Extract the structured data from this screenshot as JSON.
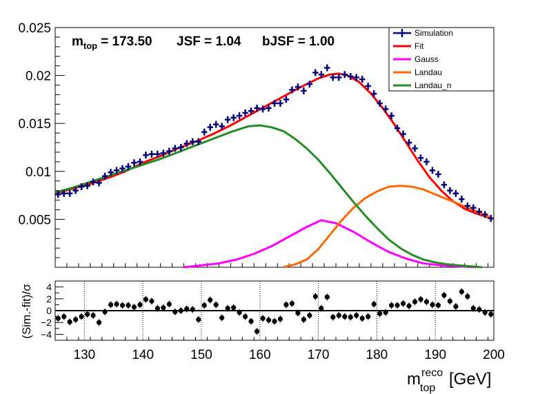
{
  "chart_data": [
    {
      "type": "scatter",
      "annotation": {
        "mtop_label": "m",
        "mtop_sub": "top",
        "mtop_value": "= 173.50",
        "jsf": "JSF = 1.04",
        "bjsf": "bJSF = 1.00"
      },
      "xlim": [
        125,
        200
      ],
      "ylim": [
        0,
        0.025
      ],
      "yticks": [
        0.005,
        0.01,
        0.015,
        0.02,
        0.025
      ],
      "ytick_labels": [
        "0.005",
        "0.01",
        "0.015",
        "0.02",
        "0.025"
      ],
      "legend": {
        "placement": "top-right",
        "entries": [
          {
            "name": "Simulation",
            "color": "#000080",
            "style": "marker"
          },
          {
            "name": "Fit",
            "color": "#ff0000",
            "style": "line"
          },
          {
            "name": "Gauss",
            "color": "#ff00ff",
            "style": "line"
          },
          {
            "name": "Landau",
            "color": "#ff6600",
            "style": "line"
          },
          {
            "name": "Landau_n",
            "color": "#228b22",
            "style": "line"
          }
        ]
      },
      "simulation": {
        "color": "#000080",
        "x": [
          125.5,
          126.5,
          127.5,
          128.5,
          129.5,
          130.5,
          131.5,
          132.5,
          133.5,
          134.5,
          135.5,
          136.5,
          137.5,
          138.5,
          139.5,
          140.5,
          141.5,
          142.5,
          143.5,
          144.5,
          145.5,
          146.5,
          147.5,
          148.5,
          149.5,
          150.5,
          151.5,
          152.5,
          153.5,
          154.5,
          155.5,
          156.5,
          157.5,
          158.5,
          159.5,
          160.5,
          161.5,
          162.5,
          163.5,
          164.5,
          165.5,
          166.5,
          167.5,
          168.5,
          169.5,
          170.5,
          171.5,
          172.5,
          173.5,
          174.5,
          175.5,
          176.5,
          177.5,
          178.5,
          179.5,
          180.5,
          181.5,
          182.5,
          183.5,
          184.5,
          185.5,
          186.5,
          187.5,
          188.5,
          189.5,
          190.5,
          191.5,
          192.5,
          193.5,
          194.5,
          195.5,
          196.5,
          197.5,
          198.5,
          199.5
        ],
        "y": [
          0.0076,
          0.0077,
          0.0077,
          0.008,
          0.0084,
          0.0085,
          0.0089,
          0.0088,
          0.0095,
          0.0099,
          0.0101,
          0.0103,
          0.0105,
          0.0109,
          0.011,
          0.0117,
          0.0118,
          0.0118,
          0.0119,
          0.0121,
          0.0124,
          0.0125,
          0.0129,
          0.0131,
          0.0131,
          0.0141,
          0.0146,
          0.0149,
          0.0147,
          0.0154,
          0.0156,
          0.0158,
          0.0161,
          0.0163,
          0.0166,
          0.0165,
          0.0166,
          0.0171,
          0.0171,
          0.0175,
          0.0185,
          0.0188,
          0.0184,
          0.0191,
          0.0203,
          0.0201,
          0.0208,
          0.0198,
          0.0198,
          0.0201,
          0.0199,
          0.0198,
          0.0196,
          0.0189,
          0.0181,
          0.0171,
          0.0165,
          0.0158,
          0.0145,
          0.0139,
          0.013,
          0.0124,
          0.0114,
          0.011,
          0.0101,
          0.0097,
          0.0086,
          0.008,
          0.0077,
          0.0071,
          0.0064,
          0.0062,
          0.0058,
          0.0055,
          0.0051
        ]
      },
      "fits": [
        {
          "name": "Fit",
          "color": "#ff0000",
          "x": [
            125,
            128,
            131,
            134,
            137,
            140,
            143,
            146,
            149,
            152,
            155,
            158,
            161,
            164,
            167,
            170,
            172,
            173.5,
            175,
            177,
            179,
            181,
            183,
            185,
            187,
            189,
            191,
            193,
            195,
            197,
            199,
            200
          ],
          "y": [
            0.0077,
            0.0082,
            0.0087,
            0.0093,
            0.01,
            0.0109,
            0.0116,
            0.0124,
            0.0131,
            0.0139,
            0.0148,
            0.0158,
            0.0168,
            0.0178,
            0.0188,
            0.0197,
            0.0201,
            0.0202,
            0.02,
            0.0193,
            0.0181,
            0.0166,
            0.0149,
            0.013,
            0.0111,
            0.0094,
            0.008,
            0.0069,
            0.0061,
            0.0056,
            0.0052,
            0.005
          ]
        },
        {
          "name": "Gauss",
          "color": "#ff00ff",
          "x": [
            147,
            150,
            153,
            156,
            159,
            162,
            165,
            168,
            170.5,
            173,
            176,
            179,
            182,
            185,
            188,
            191,
            194,
            197
          ],
          "y": [
            0.0,
            0.0002,
            0.0004,
            0.0008,
            0.0014,
            0.0022,
            0.0032,
            0.0042,
            0.0049,
            0.0046,
            0.0037,
            0.0026,
            0.0016,
            0.0009,
            0.0004,
            0.0002,
            0.0001,
            0.0
          ],
          "legend_only_label": "Gauss"
        },
        {
          "name": "Landau",
          "color": "#ff6600",
          "x": [
            164,
            166,
            168,
            170,
            172,
            174,
            176,
            178,
            180,
            182,
            184,
            186,
            188,
            190,
            192,
            194,
            196,
            198,
            200
          ],
          "y": [
            0.0,
            0.0003,
            0.0008,
            0.0019,
            0.0034,
            0.0049,
            0.0062,
            0.0072,
            0.0079,
            0.0084,
            0.0085,
            0.0084,
            0.0081,
            0.0076,
            0.0071,
            0.0066,
            0.0061,
            0.0056,
            0.005
          ]
        },
        {
          "name": "Landau_n",
          "color": "#228b22",
          "x": [
            125,
            128,
            131,
            134,
            137,
            140,
            143,
            146,
            149,
            152,
            155,
            158,
            160,
            162,
            164,
            166,
            168,
            170,
            172,
            174,
            176,
            178,
            180,
            182,
            184,
            186,
            188,
            190,
            192,
            194,
            196,
            198
          ],
          "y": [
            0.0078,
            0.0083,
            0.0089,
            0.0095,
            0.0101,
            0.0107,
            0.0113,
            0.012,
            0.0127,
            0.0134,
            0.0141,
            0.0147,
            0.0148,
            0.0146,
            0.0142,
            0.0134,
            0.0124,
            0.0112,
            0.0098,
            0.0083,
            0.0068,
            0.0054,
            0.0041,
            0.0029,
            0.002,
            0.0013,
            0.0008,
            0.0005,
            0.0003,
            0.0002,
            0.0001,
            0.0
          ]
        }
      ]
    },
    {
      "type": "scatter",
      "ylabel": "(Sim.-fit)/σ",
      "xlabel_main": "m",
      "xlabel_sup": "reco",
      "xlabel_sub": "top",
      "xlabel_unit": "[GeV]",
      "xlim": [
        125,
        200
      ],
      "ylim": [
        -5,
        5
      ],
      "xticks": [
        130,
        140,
        150,
        160,
        170,
        180,
        190,
        200
      ],
      "xtick_labels": [
        "130",
        "140",
        "150",
        "160",
        "170",
        "180",
        "190",
        "200"
      ],
      "yticks": [
        -4,
        -2,
        0,
        2,
        4
      ],
      "ytick_labels": [
        "−4",
        "−2",
        "0",
        "2",
        "4"
      ],
      "grid_x": true,
      "residuals": {
        "x": [
          125.5,
          126.5,
          127.5,
          128.5,
          129.5,
          130.5,
          131.5,
          132.5,
          133.5,
          134.5,
          135.5,
          136.5,
          137.5,
          138.5,
          139.5,
          140.5,
          141.5,
          142.5,
          143.5,
          144.5,
          145.5,
          146.5,
          147.5,
          148.5,
          149.5,
          150.5,
          151.5,
          152.5,
          153.5,
          154.5,
          155.5,
          156.5,
          157.5,
          158.5,
          159.5,
          160.5,
          161.5,
          162.5,
          163.5,
          164.5,
          165.5,
          166.5,
          167.5,
          168.5,
          169.5,
          170.5,
          171.5,
          172.5,
          173.5,
          174.5,
          175.5,
          176.5,
          177.5,
          178.5,
          179.5,
          180.5,
          181.5,
          182.5,
          183.5,
          184.5,
          185.5,
          186.5,
          187.5,
          188.5,
          189.5,
          190.5,
          191.5,
          192.5,
          193.5,
          194.5,
          195.5,
          196.5,
          197.5,
          198.5,
          199.5
        ],
        "y": [
          -1.3,
          -1.0,
          -1.9,
          -1.5,
          -1.0,
          -0.6,
          -0.8,
          -2.0,
          -0.2,
          1.0,
          1.1,
          0.9,
          0.9,
          0.6,
          1.0,
          1.9,
          1.6,
          0.4,
          0.5,
          1.1,
          -0.2,
          0.0,
          0.3,
          0.2,
          -1.5,
          0.9,
          1.8,
          1.0,
          -1.2,
          0.4,
          0.5,
          -0.3,
          -1.0,
          -1.8,
          -3.5,
          -1.3,
          -1.6,
          -1.8,
          -1.4,
          1.0,
          1.2,
          -0.4,
          -1.5,
          -0.8,
          2.4,
          0.4,
          2.3,
          -1.1,
          -0.8,
          -1.0,
          -1.1,
          -0.8,
          -1.3,
          -1.0,
          1.1,
          -0.5,
          -0.3,
          0.9,
          0.9,
          1.2,
          0.8,
          1.5,
          1.9,
          1.5,
          1.0,
          0.9,
          2.6,
          1.6,
          0.7,
          3.2,
          2.4,
          0.4,
          0.2,
          -0.3,
          -0.6
        ]
      }
    }
  ]
}
